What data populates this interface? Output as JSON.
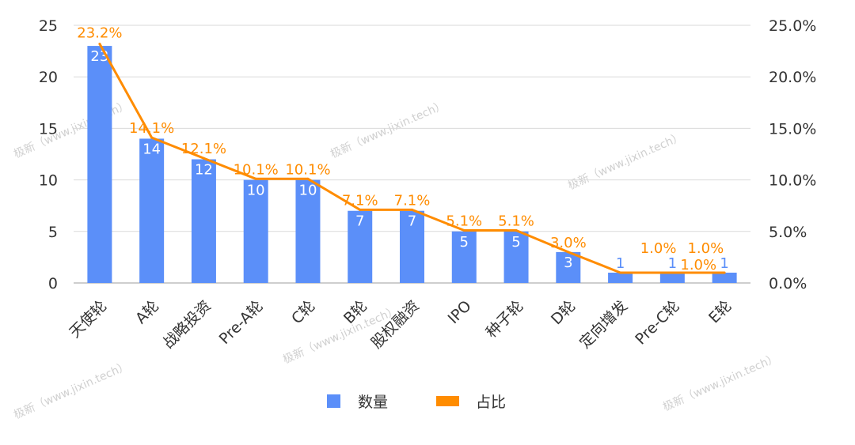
{
  "chart_data": {
    "type": "bar",
    "categories": [
      "天使轮",
      "A轮",
      "战略投资",
      "Pre-A轮",
      "C轮",
      "B轮",
      "股权融资",
      "IPO",
      "种子轮",
      "D轮",
      "定向增发",
      "Pre-C轮",
      "E轮"
    ],
    "series": [
      {
        "name": "数量",
        "type": "bar",
        "axis": "left",
        "color": "#5b8ff9",
        "values": [
          23,
          14,
          12,
          10,
          10,
          7,
          7,
          5,
          5,
          3,
          1,
          1,
          1
        ],
        "labels": [
          "23",
          "14",
          "12",
          "10",
          "10",
          "7",
          "7",
          "5",
          "5",
          "3",
          "1",
          "1",
          "1"
        ]
      },
      {
        "name": "占比",
        "type": "line",
        "axis": "right",
        "color": "#ff8c00",
        "values": [
          23.2,
          14.1,
          12.1,
          10.1,
          10.1,
          7.1,
          7.1,
          5.1,
          5.1,
          3.0,
          1.0,
          1.0,
          1.0
        ],
        "labels": [
          "23.2%",
          "14.1%",
          "12.1%",
          "10.1%",
          "10.1%",
          "7.1%",
          "7.1%",
          "5.1%",
          "5.1%",
          "3.0%",
          "1.0%",
          "1.0%",
          "1.0%"
        ]
      }
    ],
    "left_axis": {
      "min": 0,
      "max": 25,
      "ticks": [
        "0",
        "5",
        "10",
        "15",
        "20",
        "25"
      ]
    },
    "right_axis": {
      "min": 0,
      "max": 25,
      "ticks": [
        "0.0%",
        "5.0%",
        "10.0%",
        "15.0%",
        "20.0%",
        "25.0%"
      ]
    },
    "grid": true,
    "legend_position": "bottom",
    "legend": [
      {
        "label": "数量",
        "color": "#5b8ff9"
      },
      {
        "label": "占比",
        "color": "#ff8c00"
      }
    ],
    "watermark": "极新（www.jixin.tech）"
  }
}
